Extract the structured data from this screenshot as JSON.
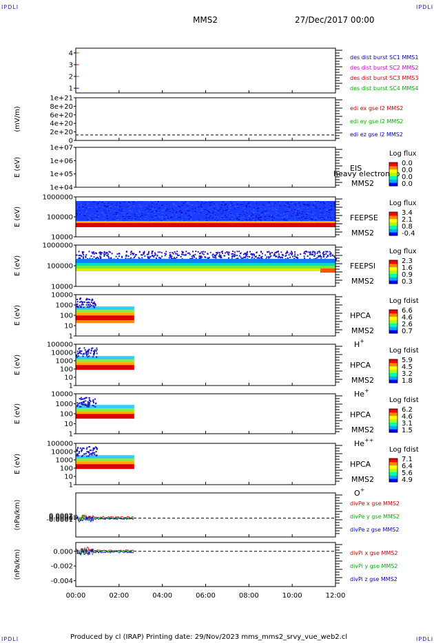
{
  "header": {
    "corner_label": "IPDLI",
    "spacecraft": "MMS2",
    "date_time": "27/Dec/2017 00:00"
  },
  "footer": {
    "text": "Produced by cl (IRAP)   Printing date: 29/Nov/2023   mms_mms2_srvy_vue_web2.cl"
  },
  "colors": {
    "blue": "#0000c8",
    "magenta": "#d000d0",
    "red": "#d00000",
    "green": "#00b000",
    "colorbar": [
      "#0000ff",
      "#00aaff",
      "#00ffaa",
      "#aaff00",
      "#ffff00",
      "#ff8800",
      "#ff0000"
    ]
  },
  "x_axis": {
    "range_hours": [
      0,
      12
    ],
    "ticks": [
      "00:00",
      "02:00",
      "04:00",
      "06:00",
      "08:00",
      "10:00",
      "12:00"
    ]
  },
  "chart_data": [
    {
      "type": "line",
      "id": "p1",
      "ylabel": "",
      "ylim": [
        0.6,
        4.4
      ],
      "yticks": [
        "1",
        "2",
        "3",
        "4"
      ],
      "series": [
        {
          "name": "des dist burst SC1 MMS1",
          "color": "#0000c8",
          "x": [
            0,
            0.15
          ],
          "y": [
            1,
            1
          ]
        },
        {
          "name": "des dist burst SC2 MMS2",
          "color": "#d000d0",
          "x": [
            0,
            0.15
          ],
          "y": [
            2,
            2
          ]
        },
        {
          "name": "des dist burst SC3 MMS3",
          "color": "#d00000",
          "x": [
            0,
            0.15
          ],
          "y": [
            3,
            3
          ]
        },
        {
          "name": "des dist burst SC4 MMS4",
          "color": "#00b000",
          "x": [
            0,
            0.15
          ],
          "y": [
            4,
            4
          ]
        }
      ]
    },
    {
      "type": "line",
      "id": "p2",
      "ylabel": "(mV/m)",
      "ylim": [
        0,
        1e+21
      ],
      "yticks": [
        "0",
        "2e+20",
        "4e+20",
        "6e+20",
        "8e+20",
        "1e+21"
      ],
      "series": [
        {
          "name": "edi ex gse l2 MMS2",
          "color": "#d00000"
        },
        {
          "name": "edi ey gse l2 MMS2",
          "color": "#00b000"
        },
        {
          "name": "edi ez gse l2 MMS2",
          "color": "#0000c8"
        }
      ]
    },
    {
      "type": "heatmap",
      "id": "p3",
      "ylabel": "E (eV)",
      "yticks": [
        "1e+04",
        "1e+05",
        "1e+06",
        "1e+07"
      ],
      "instrument": "EIS",
      "spacecraft": "MMS2",
      "note": "heavy electron to",
      "colorbar_title": "Log flux",
      "colorbar_values": [
        "0.0",
        "0.0",
        "0.0",
        "0.0"
      ]
    },
    {
      "type": "heatmap",
      "id": "p4",
      "ylabel": "E (eV)",
      "yticks": [
        "10000",
        "100000",
        "1000000"
      ],
      "instrument": "FEEPSE",
      "spacecraft": "MMS2",
      "colorbar_title": "Log flux",
      "colorbar_values": [
        "3.4",
        "2.1",
        "0.8",
        "-0.4"
      ],
      "x_coverage": [
        0,
        12
      ]
    },
    {
      "type": "heatmap",
      "id": "p5",
      "ylabel": "E (eV)",
      "yticks": [
        "10000",
        "100000",
        "1000000"
      ],
      "instrument": "FEEPSI",
      "spacecraft": "MMS2",
      "colorbar_title": "Log flux",
      "colorbar_values": [
        "2.3",
        "1.6",
        "0.9",
        "0.3"
      ],
      "x_coverage": [
        0,
        12
      ]
    },
    {
      "type": "heatmap",
      "id": "p6",
      "ylabel": "E (eV)",
      "yticks": [
        "1",
        "10",
        "100",
        "1000",
        "10000"
      ],
      "instrument": "HPCA",
      "spacecraft": "MMS2",
      "species": "H",
      "species_sup": "+",
      "colorbar_title": "Log fdist",
      "colorbar_values": [
        "6.6",
        "4.6",
        "2.6",
        "0.7"
      ],
      "x_coverage": [
        0,
        2.7
      ]
    },
    {
      "type": "heatmap",
      "id": "p7",
      "ylabel": "E (eV)",
      "yticks": [
        "1",
        "10",
        "100",
        "1000",
        "10000",
        "100000"
      ],
      "instrument": "HPCA",
      "spacecraft": "MMS2",
      "species": "He",
      "species_sup": "+",
      "colorbar_title": "Log fdist",
      "colorbar_values": [
        "5.9",
        "4.5",
        "3.2",
        "1.8"
      ],
      "x_coverage": [
        0,
        2.7
      ]
    },
    {
      "type": "heatmap",
      "id": "p8",
      "ylabel": "E (eV)",
      "yticks": [
        "1",
        "10",
        "100",
        "1000",
        "10000"
      ],
      "instrument": "HPCA",
      "spacecraft": "MMS2",
      "species": "He",
      "species_sup": "++",
      "colorbar_title": "Log fdist",
      "colorbar_values": [
        "6.2",
        "4.6",
        "3.1",
        "1.5"
      ],
      "x_coverage": [
        0,
        2.7
      ]
    },
    {
      "type": "heatmap",
      "id": "p9",
      "ylabel": "E (eV)",
      "yticks": [
        "1",
        "10",
        "100",
        "1000",
        "10000",
        "100000"
      ],
      "instrument": "HPCA",
      "spacecraft": "MMS2",
      "species": "O",
      "species_sup": "+",
      "colorbar_title": "Log fdist",
      "colorbar_values": [
        "7.1",
        "6.4",
        "5.6",
        "4.9"
      ],
      "x_coverage": [
        0,
        2.7
      ]
    },
    {
      "type": "line",
      "id": "p10",
      "ylabel": "(nPa/km)",
      "ylim": [
        -0.0015,
        0.002
      ],
      "yticks": [
        "-0.0001",
        "0.0000",
        "0.0001",
        "0.0002"
      ],
      "series": [
        {
          "name": "divPe x gse MMS2",
          "color": "#d00000"
        },
        {
          "name": "divPe y gse MMS2",
          "color": "#00b000"
        },
        {
          "name": "divPe z gse MMS2",
          "color": "#0000c8"
        }
      ]
    },
    {
      "type": "line",
      "id": "p11",
      "ylabel": "(nPa/km)",
      "ylim": [
        -0.0048,
        0.0012
      ],
      "yticks": [
        "-0.004",
        "-0.002",
        "0.000"
      ],
      "series": [
        {
          "name": "divPi x gse MMS2",
          "color": "#d00000"
        },
        {
          "name": "divPi y gse MMS2",
          "color": "#00b000"
        },
        {
          "name": "divPi z gse MMS2",
          "color": "#0000c8"
        }
      ]
    }
  ]
}
